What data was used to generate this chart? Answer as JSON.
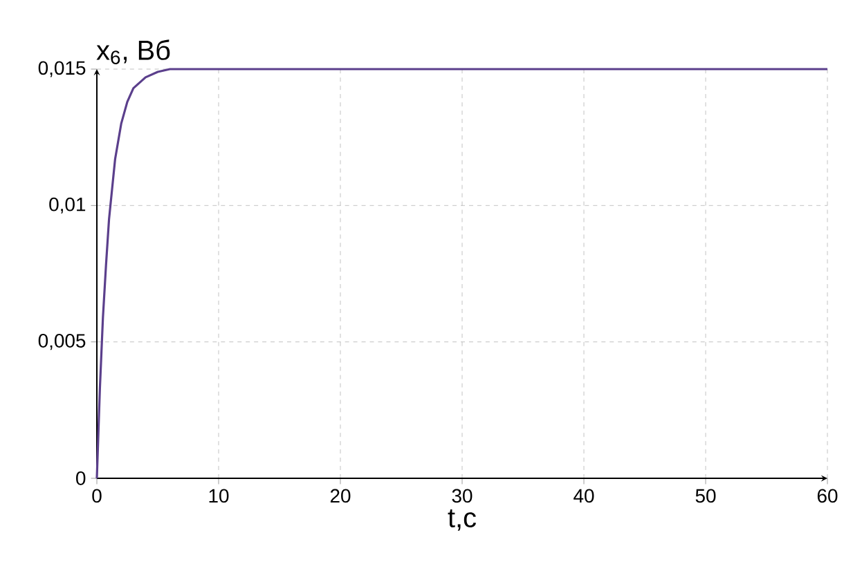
{
  "chart_data": {
    "type": "line",
    "xlabel": "t,c",
    "ylabel": "x$_{6}$, Вб",
    "x": [
      0,
      0.25,
      0.5,
      0.75,
      1,
      1.5,
      2,
      2.5,
      3,
      4,
      5,
      6,
      8,
      10,
      20,
      30,
      40,
      50,
      60
    ],
    "series": [
      {
        "color": "#5b3f8c",
        "values": [
          0,
          0.0033,
          0.0059,
          0.0078,
          0.0095,
          0.0117,
          0.013,
          0.0138,
          0.0143,
          0.0147,
          0.0149,
          0.015,
          0.015,
          0.015,
          0.015,
          0.015,
          0.015,
          0.015,
          0.015
        ]
      }
    ],
    "xlim": [
      0,
      60
    ],
    "ylim": [
      0,
      0.015
    ],
    "xticks": [
      0,
      10,
      20,
      30,
      40,
      50,
      60
    ],
    "yticks": [
      0,
      {
        "value": 0.005,
        "label": "0,005"
      },
      {
        "value": 0.01,
        "label": "0,01"
      },
      {
        "value": 0.015,
        "label": "0,015"
      }
    ],
    "grid": true,
    "line_style": "solid"
  }
}
